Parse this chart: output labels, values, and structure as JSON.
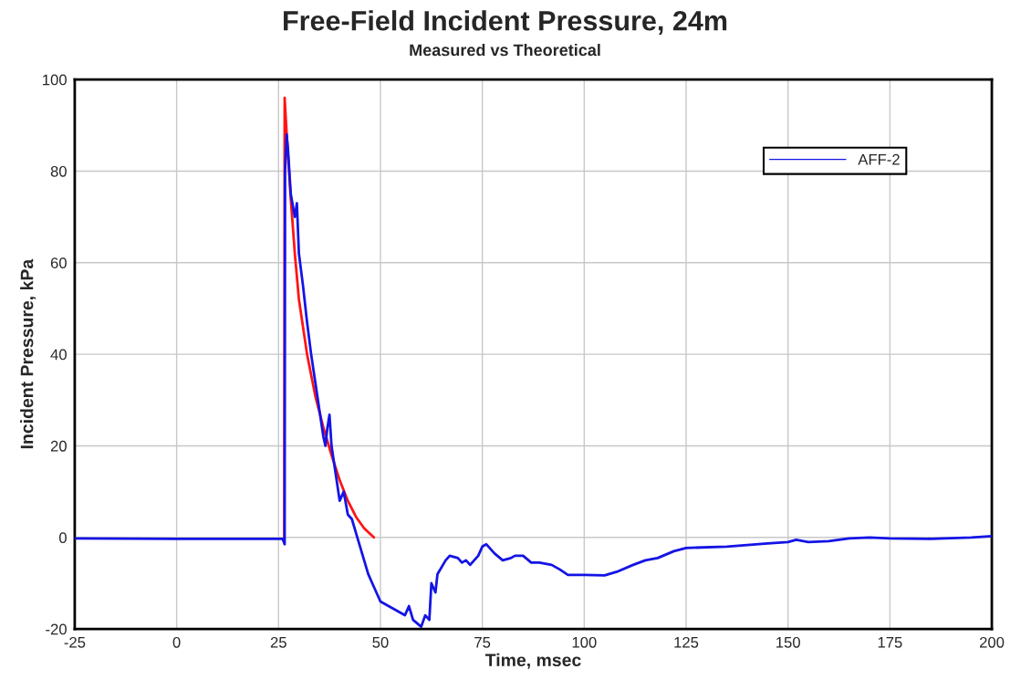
{
  "chart_data": {
    "type": "line",
    "title": "Free-Field Incident Pressure, 24m",
    "subtitle": "Measured vs Theoretical",
    "xlabel": "Time, msec",
    "ylabel": "Incident Pressure, kPa",
    "series": [
      {
        "name": "AFF-2",
        "color": "#1414e6",
        "x": [
          -25,
          0,
          26,
          26.5,
          26.6,
          27,
          27.3,
          28,
          29,
          29.5,
          30,
          31,
          32,
          33,
          34,
          35,
          36,
          36.5,
          37,
          37.5,
          38,
          39,
          40,
          41,
          42,
          43,
          44,
          45,
          46,
          47,
          48,
          49,
          50,
          52,
          54,
          56,
          57,
          58,
          60,
          61,
          62,
          62.5,
          63.5,
          64,
          66,
          67,
          69,
          70,
          71,
          72,
          74,
          75,
          76,
          78,
          80,
          82,
          83,
          85,
          87,
          89,
          92,
          94,
          96,
          100,
          105,
          108,
          112,
          115,
          118,
          122,
          125,
          135,
          145,
          150,
          152,
          155,
          160,
          165,
          170,
          175,
          185,
          195,
          200
        ],
        "values": [
          -0.2,
          -0.3,
          -0.3,
          -1.5,
          80,
          88,
          85,
          75,
          70,
          73,
          62,
          55,
          47,
          40,
          34,
          28,
          22,
          20,
          24,
          26.8,
          20,
          14,
          8,
          10,
          5,
          4,
          1,
          -2,
          -5,
          -8,
          -10,
          -12,
          -14,
          -15,
          -16,
          -17,
          -15,
          -18,
          -19.5,
          -17,
          -18,
          -10,
          -12,
          -8,
          -5,
          -4,
          -4.5,
          -5.5,
          -5,
          -6,
          -4,
          -2,
          -1.5,
          -3.5,
          -5,
          -4.5,
          -4,
          -4,
          -5.5,
          -5.5,
          -6,
          -7,
          -8.2,
          -8.2,
          -8.3,
          -7.5,
          -6,
          -5,
          -4.5,
          -3,
          -2.3,
          -2,
          -1.3,
          -1,
          -0.5,
          -1,
          -0.8,
          -0.2,
          0,
          -0.2,
          -0.3,
          0,
          0.3
        ]
      },
      {
        "color": "#ff1414",
        "x": [
          26.4,
          26.5,
          27,
          28,
          29,
          30,
          32,
          34,
          36,
          38,
          40,
          42,
          44,
          46,
          48.4
        ],
        "values": [
          0,
          96,
          88,
          74,
          62,
          52,
          40,
          31,
          24,
          18,
          12.5,
          8,
          4.5,
          2,
          0
        ]
      }
    ],
    "xlim": [
      -25,
      200
    ],
    "xticks": [
      -25,
      0,
      25,
      50,
      75,
      100,
      125,
      150,
      175,
      200
    ],
    "ylim": [
      -20,
      100
    ],
    "yticks": [
      -20,
      0,
      20,
      40,
      60,
      80,
      100
    ],
    "grid": true,
    "legend": "top right",
    "marker": "none",
    "line_style": "solid"
  }
}
